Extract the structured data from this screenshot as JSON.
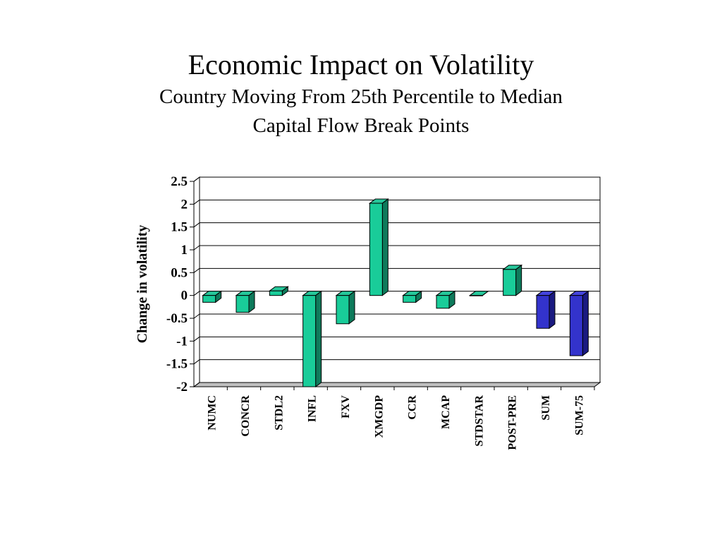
{
  "slide": {
    "title": "Economic Impact on Volatility",
    "subtitle_line1": "Country Moving From 25th Percentile to Median",
    "subtitle_line2": "Capital Flow Break Points"
  },
  "chart_data": {
    "type": "bar",
    "title": "",
    "xlabel": "",
    "ylabel": "Change in volatility",
    "ylim": [
      -2,
      2.5
    ],
    "yticks": [
      2.5,
      2,
      1.5,
      1,
      0.5,
      0,
      -0.5,
      -1,
      -1.5,
      -2
    ],
    "ytick_labels": [
      "2.5",
      "2",
      "1.5",
      "1",
      "0.5",
      "0",
      "-0.5",
      "-1",
      "-1.5",
      "-2"
    ],
    "grid": true,
    "style": "3d",
    "categories": [
      "NUMC",
      "CONCR",
      "STDL2",
      "INFL",
      "FXV",
      "XMGDP",
      "CCR",
      "MCAP",
      "STDSTAR",
      "POST-PRE",
      "SUM",
      "SUM-75"
    ],
    "values": [
      -0.15,
      -0.37,
      0.1,
      -2.0,
      -0.62,
      2.02,
      -0.15,
      -0.28,
      0.0,
      0.57,
      -0.72,
      -1.32
    ],
    "colors": {
      "teal_front": "#19CC99",
      "teal_side": "#0E7A5B",
      "teal_top": "#26C79A",
      "blue_front": "#3333CC",
      "blue_side": "#1A1A80",
      "blue_top": "#4444DD",
      "grid": "#000000",
      "wall": "#ffffff",
      "floor": "#BFBFBF"
    },
    "highlighted_categories": [
      "SUM",
      "SUM-75"
    ]
  }
}
